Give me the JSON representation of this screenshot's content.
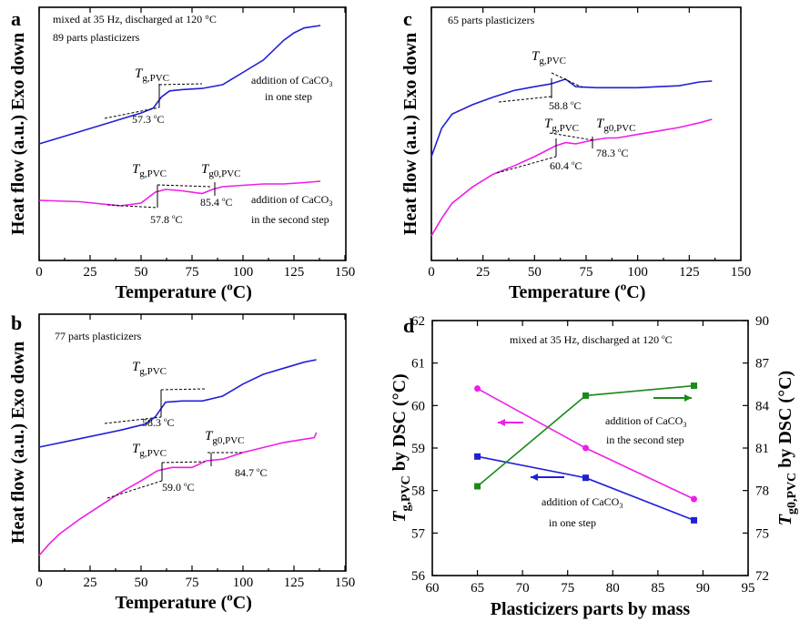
{
  "chart_data": [
    {
      "panel": "a",
      "type": "line",
      "xlabel": "Temperature (°C)",
      "ylabel": "Heat flow (a.u.) Exo down",
      "xlim": [
        0,
        150
      ],
      "xticks": [
        "0",
        "25",
        "50",
        "75",
        "100",
        "125",
        "150"
      ],
      "annotations": [
        "mixed at 35 Hz, discharged at 120 °C",
        "89 parts plasticizers"
      ],
      "series": [
        {
          "name": "addition of CaCO3 in one step",
          "color": "#1f1fd6",
          "x": [
            0,
            20,
            40,
            50,
            56,
            60,
            64,
            70,
            80,
            90,
            100,
            110,
            120,
            125,
            130,
            138
          ],
          "y": [
            0.0,
            0.1,
            0.2,
            0.25,
            0.29,
            0.38,
            0.43,
            0.44,
            0.45,
            0.48,
            0.58,
            0.68,
            0.84,
            0.9,
            0.94,
            0.96
          ],
          "label_lines": [
            "addition of CaCO",
            "in one step"
          ],
          "label_sub": "3"
        },
        {
          "name": "addition of CaCO3 in the second step",
          "color": "#ee1ee8",
          "x": [
            0,
            20,
            40,
            50,
            57,
            62,
            70,
            80,
            85,
            90,
            100,
            110,
            120,
            130,
            138
          ],
          "y": [
            -0.5,
            -0.51,
            -0.54,
            -0.52,
            -0.44,
            -0.42,
            -0.43,
            -0.45,
            -0.42,
            -0.4,
            -0.39,
            -0.38,
            -0.38,
            -0.37,
            -0.36
          ],
          "label_lines": [
            "addition of CaCO",
            "in the second step"
          ],
          "label_sub": "3"
        }
      ],
      "markers": [
        {
          "symbol": "T",
          "sub": "g,PVC",
          "value": "57.3 °C"
        },
        {
          "symbol": "T",
          "sub": "g,PVC",
          "value": "57.8 °C"
        },
        {
          "symbol": "T",
          "sub": "g0,PVC",
          "value": "85.4 °C"
        }
      ]
    },
    {
      "panel": "b",
      "type": "line",
      "xlabel": "Temperature (°C)",
      "ylabel": "Heat flow (a.u.) Exo down",
      "xlim": [
        0,
        150
      ],
      "xticks": [
        "0",
        "25",
        "50",
        "75",
        "100",
        "125",
        "150"
      ],
      "annotations": [
        "77 parts plasticizers"
      ],
      "series": [
        {
          "name": "blue",
          "color": "#1f1fd6",
          "x": [
            0,
            20,
            40,
            52,
            57,
            62,
            70,
            80,
            90,
            100,
            110,
            120,
            130,
            136
          ],
          "y": [
            0.0,
            0.07,
            0.14,
            0.19,
            0.25,
            0.37,
            0.38,
            0.38,
            0.42,
            0.52,
            0.6,
            0.65,
            0.7,
            0.72
          ]
        },
        {
          "name": "magenta",
          "color": "#ee1ee8",
          "x": [
            0,
            5,
            10,
            20,
            30,
            40,
            50,
            58,
            65,
            75,
            82,
            90,
            100,
            110,
            120,
            130,
            135,
            136
          ],
          "y": [
            -0.85,
            -0.78,
            -0.72,
            -0.63,
            -0.55,
            -0.47,
            -0.4,
            -0.34,
            -0.32,
            -0.32,
            -0.28,
            -0.27,
            -0.23,
            -0.2,
            -0.17,
            -0.15,
            -0.14,
            -0.11
          ]
        }
      ],
      "markers": [
        {
          "symbol": "T",
          "sub": "g,PVC",
          "value": "58.3 °C"
        },
        {
          "symbol": "T",
          "sub": "g,PVC",
          "value": "59.0 °C"
        },
        {
          "symbol": "T",
          "sub": "g0,PVC",
          "value": "84.7 °C"
        }
      ]
    },
    {
      "panel": "c",
      "type": "line",
      "xlabel": "Temperature (°C)",
      "ylabel": "Heat flow (a.u.) Exo down",
      "xlim": [
        0,
        150
      ],
      "xticks": [
        "0",
        "25",
        "50",
        "75",
        "100",
        "125",
        "150"
      ],
      "annotations": [
        "65 parts plasticizers"
      ],
      "series": [
        {
          "name": "blue",
          "color": "#1f1fd6",
          "x": [
            0,
            5,
            10,
            20,
            30,
            40,
            50,
            58,
            65,
            70,
            80,
            90,
            100,
            110,
            120,
            125,
            130,
            136
          ],
          "y": [
            0.0,
            0.3,
            0.45,
            0.55,
            0.63,
            0.7,
            0.74,
            0.77,
            0.82,
            0.74,
            0.73,
            0.73,
            0.73,
            0.74,
            0.75,
            0.77,
            0.79,
            0.8
          ]
        },
        {
          "name": "magenta",
          "color": "#ee1ee8",
          "x": [
            0,
            5,
            10,
            20,
            30,
            40,
            50,
            60,
            65,
            70,
            78,
            85,
            90,
            100,
            110,
            120,
            130,
            136
          ],
          "y": [
            -0.8,
            -0.65,
            -0.52,
            -0.38,
            -0.27,
            -0.2,
            -0.12,
            -0.03,
            0.0,
            -0.01,
            0.02,
            0.04,
            0.04,
            0.07,
            0.1,
            0.13,
            0.17,
            0.2
          ]
        }
      ],
      "markers": [
        {
          "symbol": "T",
          "sub": "g,PVC",
          "value": "58.8 °C"
        },
        {
          "symbol": "T",
          "sub": "g,PVC",
          "value": "60.4 °C"
        },
        {
          "symbol": "T",
          "sub": "g0,PVC",
          "value": "78.3 °C"
        }
      ]
    },
    {
      "panel": "d",
      "type": "line",
      "title": "mixed at 35 Hz, discharged at 120 °C",
      "xlabel": "Plasticizers parts by mass",
      "ylabel_left": {
        "symbol": "T",
        "sub": "g,PVC",
        "rest": " by DSC (°C)"
      },
      "ylabel_right": {
        "symbol": "T",
        "sub": "g0,PVC",
        "rest": " by DSC (°C)"
      },
      "xlim": [
        60,
        95
      ],
      "ylim_left": [
        56,
        62
      ],
      "ylim_right": [
        72,
        90
      ],
      "xticks": [
        "60",
        "65",
        "70",
        "75",
        "80",
        "85",
        "90",
        "95"
      ],
      "yticks_left": [
        "56",
        "57",
        "58",
        "59",
        "60",
        "61",
        "62"
      ],
      "yticks_right": [
        "72",
        "75",
        "78",
        "81",
        "84",
        "87",
        "90"
      ],
      "series": [
        {
          "name": "Tg,PVC second step",
          "color": "#ee1ee8",
          "axis": "left",
          "marker": "circle",
          "x": [
            65,
            77,
            89
          ],
          "y": [
            60.4,
            59.0,
            57.8
          ]
        },
        {
          "name": "Tg,PVC one step",
          "color": "#1f1fd6",
          "axis": "left",
          "marker": "square",
          "x": [
            65,
            77,
            89
          ],
          "y": [
            58.8,
            58.3,
            57.3
          ]
        },
        {
          "name": "Tg0,PVC second step",
          "color": "#1a8a1a",
          "axis": "right",
          "marker": "square",
          "x": [
            65,
            77,
            89
          ],
          "y": [
            78.3,
            84.7,
            85.4
          ]
        }
      ],
      "labels": {
        "second_step": [
          "addition of CaCO",
          "in the second step"
        ],
        "one_step": [
          "addition of CaCO",
          "in one step"
        ],
        "sub": "3"
      }
    }
  ]
}
